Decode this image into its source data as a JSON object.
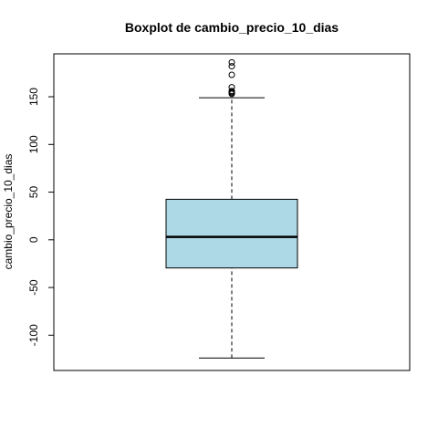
{
  "chart_data": {
    "type": "boxplot",
    "title": "Boxplot de cambio_precio_10_dias",
    "xlabel": "",
    "ylabel": "cambio_precio_10_dias",
    "ylim": [
      -137,
      195
    ],
    "yticks": [
      -100,
      -50,
      0,
      50,
      100,
      150
    ],
    "ytick_labels": [
      "-100",
      "-50",
      "0",
      "50",
      "100",
      "150"
    ],
    "grid": false,
    "box_fill": "#ADD8E6",
    "stats": {
      "lower_whisker": -124,
      "q1": -29.5,
      "median": 3,
      "q3": 42.5,
      "upper_whisker": 149
    },
    "outliers": [
      153,
      154,
      155,
      156,
      160,
      173,
      182,
      186
    ]
  }
}
